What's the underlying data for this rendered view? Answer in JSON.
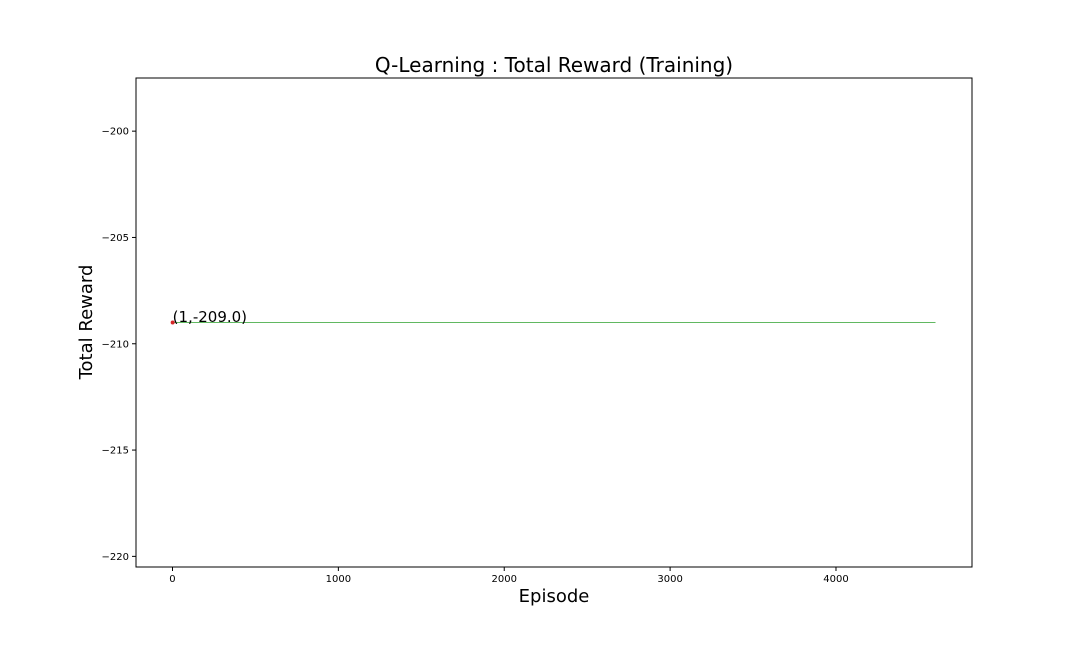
{
  "chart_data": {
    "type": "line",
    "title": "Q-Learning : Total Reward (Training)",
    "xlabel": "Episode",
    "ylabel": "Total Reward",
    "xlim": [
      -220,
      4820
    ],
    "ylim": [
      -220.5,
      -197.5
    ],
    "xticks": [
      0,
      1000,
      2000,
      3000,
      4000
    ],
    "yticks": [
      -200,
      -205,
      -210,
      -215,
      -220
    ],
    "xtick_labels": [
      "0",
      "1000",
      "2000",
      "3000",
      "4000"
    ],
    "ytick_labels": [
      "−200",
      "−205",
      "−210",
      "−215",
      "−220"
    ],
    "grid": false,
    "series": [
      {
        "color": "#2ca02c",
        "x": [
          1,
          4600
        ],
        "y": [
          -209.0,
          -209.0
        ]
      }
    ],
    "highlight_point": {
      "x": 1,
      "y": -209.0,
      "color": "#d62728"
    },
    "annotation": {
      "text": "(1,-209.0)",
      "x": 1,
      "y": -209.0
    }
  }
}
